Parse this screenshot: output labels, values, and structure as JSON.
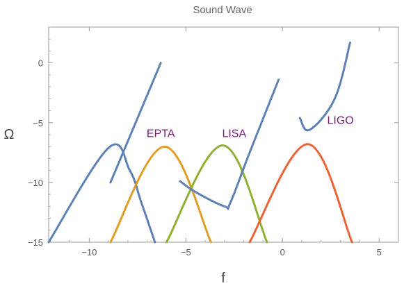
{
  "chart_data": {
    "type": "line",
    "title": "Sound Wave",
    "xlabel": "f",
    "ylabel": "Ω",
    "xlim": [
      -12.1,
      6.0
    ],
    "ylim": [
      -15,
      3.0
    ],
    "x_ticks": [
      -10,
      -5,
      0,
      5
    ],
    "y_ticks": [
      0,
      -5,
      -10,
      -15
    ],
    "grid": false,
    "legend": "none",
    "annotations": [
      {
        "text": "EPTA",
        "x": -6.3,
        "y": -6.2,
        "color": "#7a1a7a"
      },
      {
        "text": "LISA",
        "x": -2.5,
        "y": -6.2,
        "color": "#7a1a7a"
      },
      {
        "text": "LIGO",
        "x": 3.0,
        "y": -5.1,
        "color": "#7a1a7a"
      }
    ],
    "series": [
      {
        "color": "#5e81b5",
        "x": [
          -12.1,
          -9.0,
          -7.9,
          -7.3,
          -6.6
        ],
        "y": [
          -15,
          -7.1,
          -9.0,
          -11.7,
          -15
        ]
      },
      {
        "color": "#5e81b5",
        "x": [
          -8.9,
          -6.3
        ],
        "y": [
          -10.0,
          0.0
        ]
      },
      {
        "color": "#e19c24",
        "x": [
          -8.9,
          -6.1,
          -3.7
        ],
        "y": [
          -15,
          -7.0,
          -15
        ]
      },
      {
        "color": "#8fb032",
        "x": [
          -6.0,
          -3.1,
          -0.8
        ],
        "y": [
          -15,
          -6.9,
          -15
        ]
      },
      {
        "color": "#5e81b5",
        "x": [
          -5.3,
          -4.5,
          -3.0,
          -2.7,
          -1.7,
          -0.2
        ],
        "y": [
          -9.9,
          -10.8,
          -12.0,
          -11.7,
          -7.5,
          -1.4
        ]
      },
      {
        "color": "#eb6235",
        "x": [
          -1.7,
          1.3,
          3.6
        ],
        "y": [
          -15,
          -6.8,
          -15
        ]
      },
      {
        "color": "#5e81b5",
        "x": [
          0.9,
          1.4,
          2.7,
          3.5
        ],
        "y": [
          -4.6,
          -5.6,
          -3.0,
          1.7
        ]
      }
    ]
  }
}
